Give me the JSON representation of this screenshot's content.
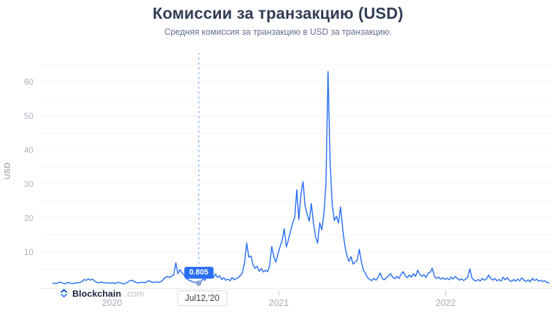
{
  "header": {
    "title": "Комиссии за транзакцию (USD)",
    "subtitle": "Средняя комиссия за транзакцию в USD за транзакцию."
  },
  "y_axis": {
    "unit": "USD",
    "ticks": [
      "10",
      "20",
      "30",
      "40",
      "50",
      "60"
    ]
  },
  "x_axis": {
    "ticks": [
      {
        "label": "2020",
        "year": 2020,
        "tick_visible": false
      },
      {
        "label": "2021",
        "year": 2021,
        "tick_visible": true
      },
      {
        "label": "2022",
        "year": 2022,
        "tick_visible": true
      }
    ]
  },
  "marker": {
    "value_label": "0.805",
    "date_label": "Jul12,'20"
  },
  "footer": {
    "brand": "Blockchain",
    "suffix": ".com"
  },
  "colors": {
    "line": "#2a6ff2",
    "tooltip_bg": "#2a6ff2",
    "dashed_line": "#8fb6f5",
    "marker_dot": "#8fa7cf",
    "marker_dot_fill": "#8ca6cf",
    "gridline": "#f2f3f5",
    "axis_line": "#e6e8ec",
    "tick_mark": "#c9ced6",
    "brand_icon_dark": "#1656d2",
    "brand_icon_light": "#3d89f5"
  },
  "chart_data": {
    "type": "line",
    "title": "Комиссии за транзакцию (USD)",
    "subtitle": "Средняя комиссия за транзакцию в USD за транзакцию.",
    "xlabel": "",
    "ylabel": "USD",
    "ylim": [
      0,
      65
    ],
    "y_ticks": [
      10,
      20,
      30,
      40,
      50,
      60
    ],
    "y_gridlines": [
      5,
      10,
      15,
      20,
      25,
      30,
      35,
      40,
      45,
      50,
      55,
      60,
      65
    ],
    "grid": true,
    "legend": "none",
    "x_start_year": 2019.645,
    "x_step_years": 0.0125,
    "x_end_year": 2022.62,
    "highlight": {
      "index": 70,
      "year": 2020.52,
      "date_label": "Jul12,'20",
      "value": 0.805,
      "value_label": "0.805"
    },
    "series": [
      {
        "name": "Средняя комиссия за транзакцию (USD)",
        "values": [
          0.8,
          0.75,
          0.7,
          1.15,
          1.0,
          0.75,
          0.6,
          1.05,
          0.9,
          0.75,
          0.7,
          0.95,
          0.9,
          1.0,
          1.3,
          1.9,
          1.6,
          2.1,
          1.7,
          2.0,
          1.5,
          1.1,
          0.9,
          1.15,
          1.0,
          0.85,
          1.0,
          0.75,
          0.85,
          0.9,
          0.7,
          1.05,
          0.95,
          0.75,
          0.6,
          0.85,
          1.1,
          1.6,
          1.7,
          1.3,
          1.0,
          0.85,
          1.0,
          1.1,
          0.9,
          1.2,
          1.55,
          1.25,
          1.0,
          1.1,
          1.2,
          1.0,
          1.3,
          1.9,
          2.5,
          2.75,
          2.5,
          2.95,
          3.2,
          6.8,
          3.6,
          4.8,
          3.8,
          3.2,
          2.2,
          1.8,
          1.5,
          1.2,
          1.0,
          1.1,
          0.805,
          1.3,
          2.0,
          1.7,
          2.8,
          4.2,
          3.2,
          2.4,
          3.5,
          2.5,
          3.0,
          1.9,
          2.4,
          1.7,
          2.0,
          1.5,
          2.5,
          1.8,
          2.2,
          2.5,
          3.1,
          4.0,
          7.0,
          12.6,
          8.5,
          8.8,
          6.2,
          5.2,
          5.8,
          4.3,
          5.1,
          4.1,
          4.6,
          4.2,
          6.0,
          11.6,
          8.5,
          7.0,
          9.5,
          11.5,
          13.5,
          16.8,
          11.4,
          13.6,
          16.0,
          18.5,
          20.0,
          28.2,
          19.5,
          27.0,
          30.6,
          23.5,
          21.0,
          19.0,
          24.2,
          18.5,
          14.5,
          12.6,
          18.5,
          16.5,
          21.0,
          30.0,
          63.0,
          36.0,
          24.0,
          19.2,
          20.5,
          18.5,
          23.2,
          17.0,
          12.0,
          9.0,
          7.2,
          8.6,
          6.4,
          7.0,
          7.6,
          10.8,
          7.0,
          4.6,
          3.6,
          2.4,
          1.9,
          1.6,
          2.2,
          1.7,
          2.6,
          3.8,
          2.2,
          1.8,
          2.4,
          3.0,
          3.6,
          2.6,
          2.1,
          2.8,
          2.2,
          3.4,
          4.2,
          3.0,
          2.4,
          3.2,
          2.6,
          3.6,
          2.8,
          4.6,
          3.4,
          2.8,
          3.3,
          2.5,
          3.8,
          4.0,
          5.2,
          2.9,
          2.2,
          2.6,
          2.0,
          2.4,
          1.9,
          2.3,
          1.8,
          2.6,
          2.0,
          2.8,
          2.2,
          1.7,
          2.1,
          1.6,
          2.0,
          2.6,
          5.0,
          2.4,
          1.7,
          1.5,
          1.9,
          1.4,
          2.2,
          1.7,
          2.0,
          3.2,
          2.2,
          1.7,
          2.2,
          1.5,
          1.9,
          1.4,
          2.6,
          1.8,
          2.4,
          1.6,
          1.3,
          1.9,
          1.4,
          2.0,
          1.5,
          2.4,
          1.7,
          1.3,
          1.8,
          1.2,
          2.2,
          1.6,
          2.0,
          1.4,
          1.7,
          1.3,
          1.5,
          1.0,
          0.9
        ]
      }
    ]
  }
}
